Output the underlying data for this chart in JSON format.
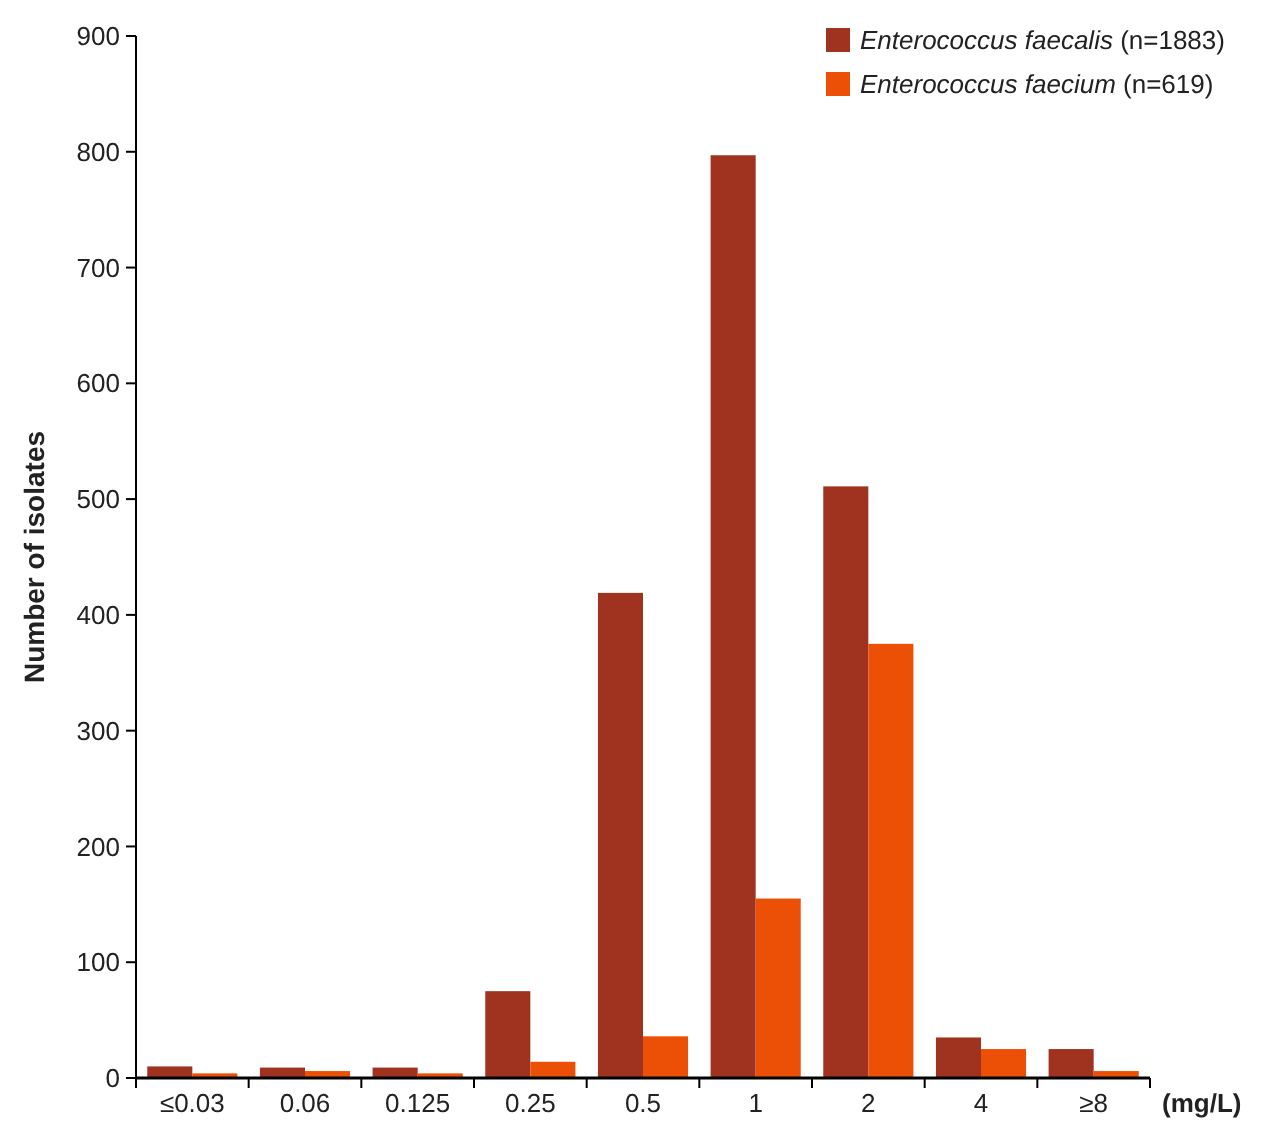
{
  "chart_data": {
    "type": "bar",
    "xlabel": "(mg/L)",
    "ylabel": "Number of isolates",
    "categories": [
      "≤0.03",
      "0.06",
      "0.125",
      "0.25",
      "0.5",
      "1",
      "2",
      "4",
      "≥8"
    ],
    "series": [
      {
        "name": "Enterococcus faecalis (n=1883)",
        "color": "#a0331f",
        "values": [
          10,
          9,
          9,
          75,
          419,
          797,
          511,
          35,
          25
        ]
      },
      {
        "name": "Enterococcus faecium (n=619)",
        "color": "#ec5006",
        "values": [
          4,
          6,
          4,
          14,
          36,
          155,
          375,
          25,
          6
        ]
      }
    ],
    "ylim": [
      0,
      900
    ],
    "yticks": [
      0,
      100,
      200,
      300,
      400,
      500,
      600,
      700,
      800,
      900
    ],
    "grid": false,
    "legend": "top right"
  }
}
